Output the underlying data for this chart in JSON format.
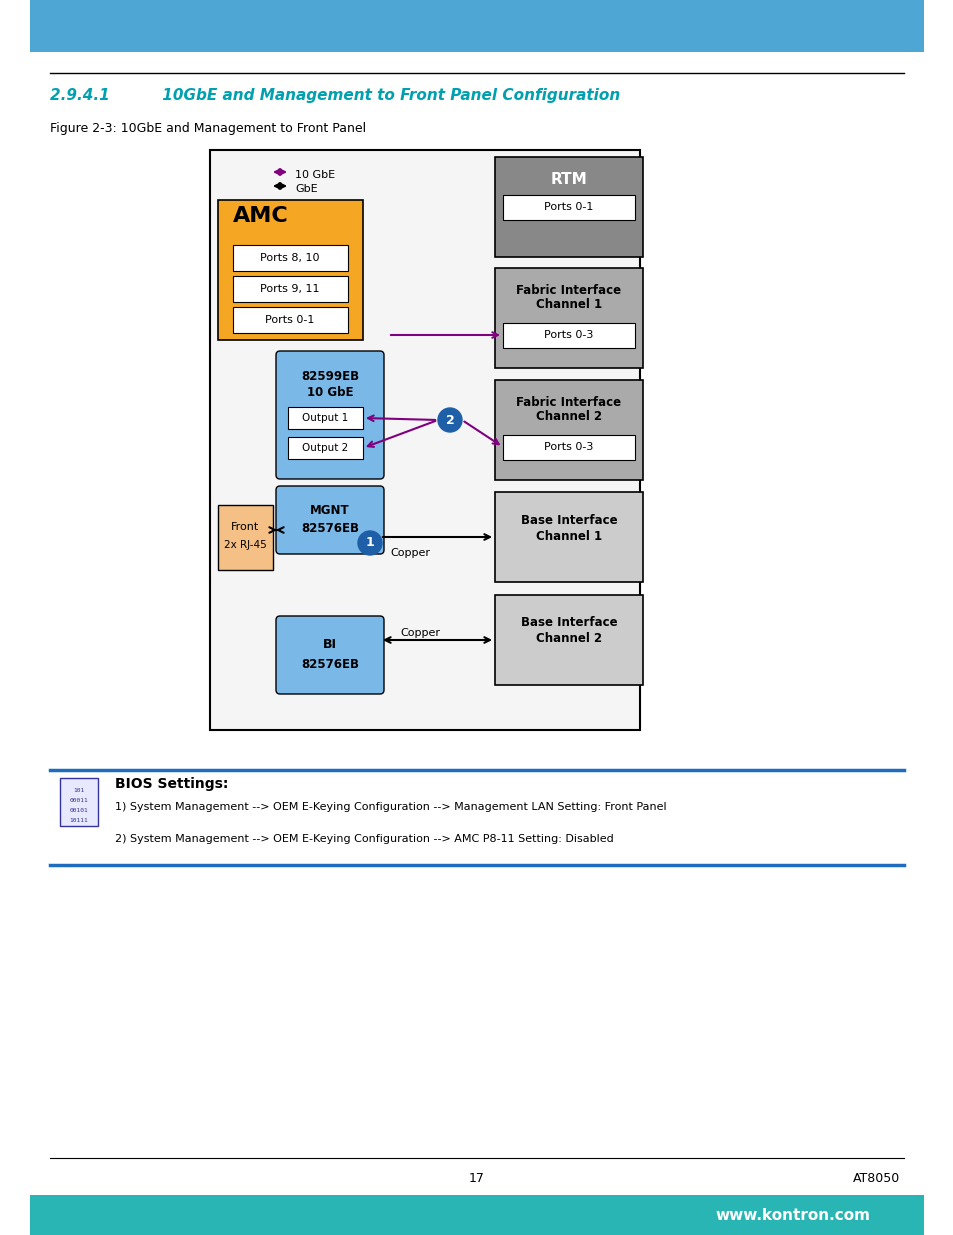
{
  "title": "2.9.4.1          10GbE and Management to Front Panel Configuration",
  "fig_caption": "Figure 2-3: 10GbE and Management to Front Panel",
  "page_number": "17",
  "product": "AT8050",
  "website": "www.kontron.com",
  "bios_title": "BIOS Settings:",
  "bios_line1": "1) System Management --> OEM E-Keying Configuration --> Management LAN Setting: Front Panel",
  "bios_line2": "2) System Management --> OEM E-Keying Configuration --> AMC P8-11 Setting: Disabled",
  "header_color": "#4da6d4",
  "footer_color": "#2ab5b5",
  "title_color": "#00a0b0",
  "diagram_border_color": "#000000",
  "amc_color": "#f5a623",
  "front_color": "#f5c085",
  "blue_box_color": "#7ab8e8",
  "rtm_color": "#888888",
  "fabric_color": "#aaaaaa",
  "base_color": "#cccccc",
  "white_box_color": "#ffffff",
  "arrow_purple": "#800080",
  "arrow_black": "#000000",
  "circle_blue": "#1e5fa8"
}
